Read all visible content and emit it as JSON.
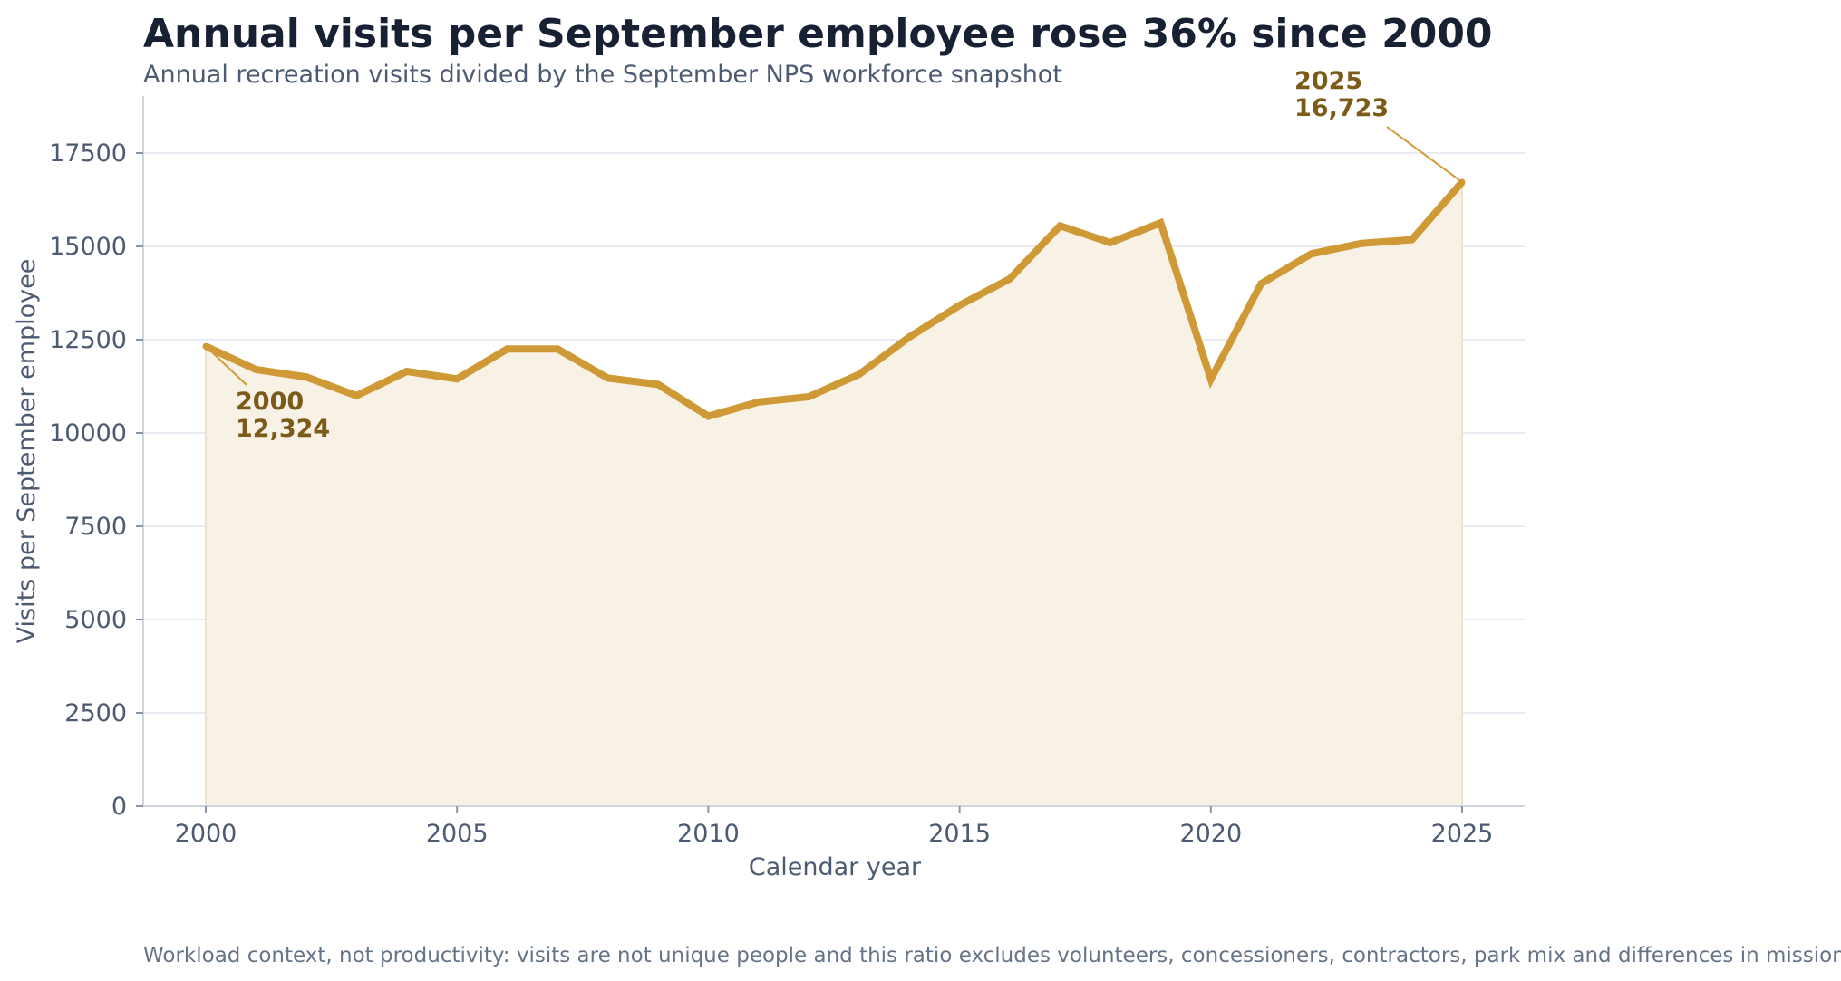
{
  "chart_data": {
    "type": "area",
    "title": "Annual visits per September employee rose 36% since 2000",
    "subtitle": "Annual recreation visits divided by the September NPS workforce snapshot",
    "xlabel": "Calendar year",
    "ylabel": "Visits per September employee",
    "xlim": [
      1998.75,
      2026.25
    ],
    "ylim": [
      0,
      19000
    ],
    "x_ticks": [
      2000,
      2005,
      2010,
      2015,
      2020,
      2025
    ],
    "y_ticks": [
      0,
      2500,
      5000,
      7500,
      10000,
      12500,
      15000,
      17500
    ],
    "grid": "horizontal",
    "legend": "none",
    "series": [
      {
        "x": [
          2000,
          2001,
          2002,
          2003,
          2004,
          2005,
          2006,
          2007,
          2008,
          2009,
          2010,
          2011,
          2012,
          2013,
          2014,
          2015,
          2016,
          2017,
          2018,
          2019,
          2020,
          2021,
          2022,
          2023,
          2024,
          2025
        ],
        "values": [
          12324,
          11700,
          11500,
          11000,
          11650,
          11450,
          12250,
          12250,
          11470,
          11300,
          10450,
          10830,
          10970,
          11570,
          12570,
          13420,
          14130,
          15550,
          15100,
          15630,
          11440,
          14000,
          14800,
          15080,
          15180,
          16723
        ]
      }
    ],
    "annotations": [
      {
        "x": 2000,
        "y": 12324,
        "year_label": "2000",
        "value_label": "12,324"
      },
      {
        "x": 2025,
        "y": 16723,
        "year_label": "2025",
        "value_label": "16,723"
      }
    ],
    "footnote": "Workload context, not productivity: visits are not unique people and this ratio excludes volunteers, concessioners, contractors, park mix and differences in mission.",
    "colors": {
      "line": "#cf9a36",
      "fill": "#f8f1e5",
      "annotation_text": "#7c5a18",
      "annotation_leader": "#cf9a36",
      "grid": "#e8ebf1",
      "axis": "#cfd5df",
      "title": "#172133",
      "text": "#4d5b72",
      "footnote": "#667488"
    }
  }
}
